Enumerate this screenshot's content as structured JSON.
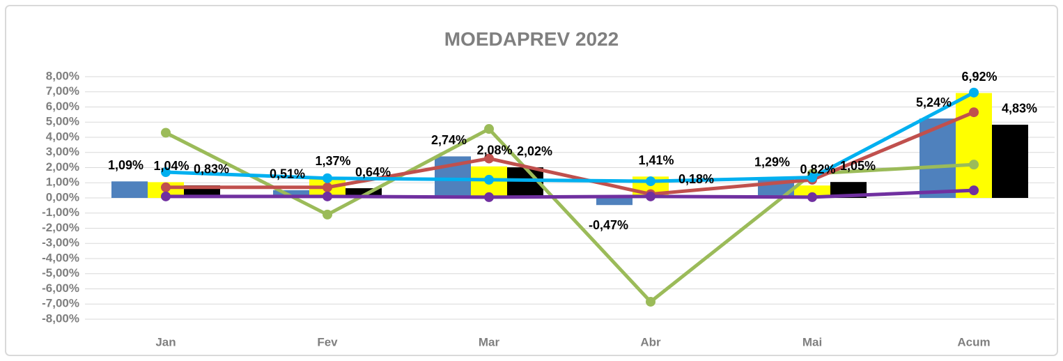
{
  "chart_data": {
    "type": "bar",
    "title": "MOEDAPREV 2022",
    "categories": [
      "Jan",
      "Fev",
      "Mar",
      "Abr",
      "Mai",
      "Acum"
    ],
    "ylim": [
      -8,
      8
    ],
    "yticks": [
      {
        "value": -8,
        "label": "-8,00%"
      },
      {
        "value": -7,
        "label": "-7,00%"
      },
      {
        "value": -6,
        "label": "-6,00%"
      },
      {
        "value": -5,
        "label": "-5,00%"
      },
      {
        "value": -4,
        "label": "-4,00%"
      },
      {
        "value": -3,
        "label": "-3,00%"
      },
      {
        "value": -2,
        "label": "-2,00%"
      },
      {
        "value": -1,
        "label": "-1,00%"
      },
      {
        "value": 0,
        "label": "0,00%"
      },
      {
        "value": 1,
        "label": "1,00%"
      },
      {
        "value": 2,
        "label": "2,00%"
      },
      {
        "value": 3,
        "label": "3,00%"
      },
      {
        "value": 4,
        "label": "4,00%"
      },
      {
        "value": 5,
        "label": "5,00%"
      },
      {
        "value": 6,
        "label": "6,00%"
      },
      {
        "value": 7,
        "label": "7,00%"
      },
      {
        "value": 8,
        "label": "8,00%"
      }
    ],
    "grid": true,
    "series": [
      {
        "type": "bar",
        "color": "#4f81bd",
        "values": [
          1.09,
          0.51,
          2.74,
          -0.47,
          1.29,
          5.24
        ],
        "value_labels": [
          "1,09%",
          "0,51%",
          "2,74%",
          "-0,47%",
          "1,29%",
          "5,24%"
        ]
      },
      {
        "type": "bar",
        "color": "#ffff00",
        "values": [
          1.04,
          1.37,
          2.08,
          1.41,
          0.82,
          6.92
        ],
        "value_labels": [
          "1,04%",
          "1,37%",
          "2,08%",
          "1,41%",
          "0,82%",
          "6,92%"
        ]
      },
      {
        "type": "bar",
        "color": "#000000",
        "values": [
          0.83,
          0.64,
          2.02,
          0.18,
          1.05,
          4.83
        ],
        "value_labels": [
          "0,83%",
          "0,64%",
          "2,02%",
          "0,18%",
          "1,05%",
          "4,83%"
        ]
      },
      {
        "type": "line",
        "color": "#9bbb59",
        "values": [
          4.3,
          -1.1,
          4.55,
          -6.85,
          1.6,
          2.2
        ]
      },
      {
        "type": "line",
        "color": "#c0504d",
        "values": [
          0.7,
          0.7,
          2.6,
          0.25,
          1.2,
          5.65
        ]
      },
      {
        "type": "line",
        "color": "#00b0f0",
        "values": [
          1.7,
          1.3,
          1.2,
          1.1,
          1.35,
          6.95
        ]
      },
      {
        "type": "line",
        "color": "#7030a0",
        "values": [
          0.1,
          0.1,
          0.05,
          0.1,
          0.05,
          0.5
        ]
      }
    ]
  }
}
